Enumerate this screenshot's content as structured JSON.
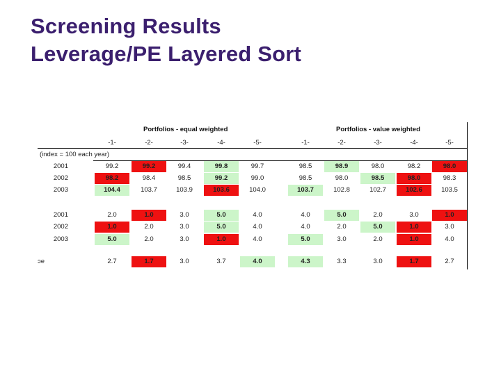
{
  "title": {
    "line1": "Screening Results",
    "line2": "Leverage/PE Layered Sort"
  },
  "table": {
    "group_equal": "Portfolios - equal weighted",
    "group_value": "Portfolios - value weighted",
    "col_labels": [
      "-1-",
      "-2-",
      "-3-",
      "-4-",
      "-5-",
      "-1-",
      "-2-",
      "-3-",
      "-4-",
      "-5-"
    ],
    "index_note": "(index = 100 each year)",
    "bottom_label": "ɔe",
    "colors": {
      "green": "#ccf5c9",
      "red": "#ee1111"
    },
    "sections": [
      {
        "rows": [
          {
            "year": "2001",
            "cells": [
              {
                "v": "99.2",
                "s": ""
              },
              {
                "v": "99.2",
                "s": "r"
              },
              {
                "v": "99.4",
                "s": ""
              },
              {
                "v": "99.8",
                "s": "g"
              },
              {
                "v": "99.7",
                "s": ""
              },
              {
                "v": "98.5",
                "s": ""
              },
              {
                "v": "98.9",
                "s": "g"
              },
              {
                "v": "98.0",
                "s": ""
              },
              {
                "v": "98.2",
                "s": ""
              },
              {
                "v": "98.0",
                "s": "r"
              }
            ]
          },
          {
            "year": "2002",
            "cells": [
              {
                "v": "98.2",
                "s": "r"
              },
              {
                "v": "98.4",
                "s": ""
              },
              {
                "v": "98.5",
                "s": ""
              },
              {
                "v": "99.2",
                "s": "g"
              },
              {
                "v": "99.0",
                "s": ""
              },
              {
                "v": "98.5",
                "s": ""
              },
              {
                "v": "98.0",
                "s": ""
              },
              {
                "v": "98.5",
                "s": "g"
              },
              {
                "v": "98.0",
                "s": "r"
              },
              {
                "v": "98.3",
                "s": ""
              }
            ]
          },
          {
            "year": "2003",
            "cells": [
              {
                "v": "104.4",
                "s": "g"
              },
              {
                "v": "103.7",
                "s": ""
              },
              {
                "v": "103.9",
                "s": ""
              },
              {
                "v": "103.6",
                "s": "r"
              },
              {
                "v": "104.0",
                "s": ""
              },
              {
                "v": "103.7",
                "s": "g"
              },
              {
                "v": "102.8",
                "s": ""
              },
              {
                "v": "102.7",
                "s": ""
              },
              {
                "v": "102.6",
                "s": "r"
              },
              {
                "v": "103.5",
                "s": ""
              }
            ]
          }
        ]
      },
      {
        "rows": [
          {
            "year": "2001",
            "cells": [
              {
                "v": "2.0",
                "s": ""
              },
              {
                "v": "1.0",
                "s": "r"
              },
              {
                "v": "3.0",
                "s": ""
              },
              {
                "v": "5.0",
                "s": "g"
              },
              {
                "v": "4.0",
                "s": ""
              },
              {
                "v": "4.0",
                "s": ""
              },
              {
                "v": "5.0",
                "s": "g"
              },
              {
                "v": "2.0",
                "s": ""
              },
              {
                "v": "3.0",
                "s": ""
              },
              {
                "v": "1.0",
                "s": "r"
              }
            ]
          },
          {
            "year": "2002",
            "cells": [
              {
                "v": "1.0",
                "s": "r"
              },
              {
                "v": "2.0",
                "s": ""
              },
              {
                "v": "3.0",
                "s": ""
              },
              {
                "v": "5.0",
                "s": "g"
              },
              {
                "v": "4.0",
                "s": ""
              },
              {
                "v": "4.0",
                "s": ""
              },
              {
                "v": "2.0",
                "s": ""
              },
              {
                "v": "5.0",
                "s": "g"
              },
              {
                "v": "1.0",
                "s": "r"
              },
              {
                "v": "3.0",
                "s": ""
              }
            ]
          },
          {
            "year": "2003",
            "cells": [
              {
                "v": "5.0",
                "s": "g"
              },
              {
                "v": "2.0",
                "s": ""
              },
              {
                "v": "3.0",
                "s": ""
              },
              {
                "v": "1.0",
                "s": "r"
              },
              {
                "v": "4.0",
                "s": ""
              },
              {
                "v": "5.0",
                "s": "g"
              },
              {
                "v": "3.0",
                "s": ""
              },
              {
                "v": "2.0",
                "s": ""
              },
              {
                "v": "1.0",
                "s": "r"
              },
              {
                "v": "4.0",
                "s": ""
              }
            ]
          }
        ]
      }
    ],
    "average_row": [
      {
        "v": "2.7",
        "s": ""
      },
      {
        "v": "1.7",
        "s": "r"
      },
      {
        "v": "3.0",
        "s": ""
      },
      {
        "v": "3.7",
        "s": ""
      },
      {
        "v": "4.0",
        "s": "g"
      },
      {
        "v": "4.3",
        "s": "g"
      },
      {
        "v": "3.3",
        "s": ""
      },
      {
        "v": "3.0",
        "s": ""
      },
      {
        "v": "1.7",
        "s": "r"
      },
      {
        "v": "2.7",
        "s": ""
      }
    ]
  }
}
